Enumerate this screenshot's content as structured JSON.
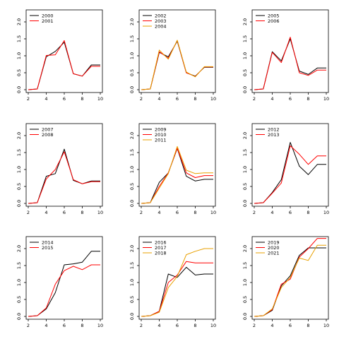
{
  "chart_data": [
    {
      "type": "line",
      "x": [
        2,
        3,
        4,
        5,
        6,
        7,
        8,
        9,
        10
      ],
      "xticks": [
        2,
        4,
        6,
        8,
        10
      ],
      "yticks": [
        "0.0",
        "0.5",
        "1.0",
        "1.5",
        "2.0"
      ],
      "xlim": [
        2,
        10
      ],
      "ylim": [
        0,
        2.3
      ],
      "grid": false,
      "legend": "top-left",
      "series": [
        {
          "name": "2000",
          "color": "#000000",
          "values": [
            0,
            0.02,
            0.97,
            1.13,
            1.4,
            0.47,
            0.4,
            0.73,
            0.73
          ]
        },
        {
          "name": "2001",
          "color": "#ff0000",
          "values": [
            0,
            0.02,
            1.01,
            1.03,
            1.45,
            0.47,
            0.4,
            0.69,
            0.69
          ]
        }
      ]
    },
    {
      "type": "line",
      "x": [
        2,
        3,
        4,
        5,
        6,
        7,
        8,
        9,
        10
      ],
      "xticks": [
        2,
        4,
        6,
        8,
        10
      ],
      "yticks": [
        "0.0",
        "0.5",
        "1.0",
        "1.5",
        "2.0"
      ],
      "xlim": [
        2,
        10
      ],
      "ylim": [
        0,
        2.3
      ],
      "grid": false,
      "legend": "top-left",
      "series": [
        {
          "name": "2002",
          "color": "#000000",
          "values": [
            0,
            0.02,
            1.1,
            0.97,
            1.43,
            0.5,
            0.4,
            0.66,
            0.66
          ]
        },
        {
          "name": "2003",
          "color": "#ff0000",
          "values": [
            0,
            0.02,
            1.12,
            0.93,
            1.45,
            0.5,
            0.39,
            0.67,
            0.67
          ]
        },
        {
          "name": "2004",
          "color": "#e8a000",
          "values": [
            0,
            0.02,
            1.17,
            0.9,
            1.46,
            0.52,
            0.38,
            0.68,
            0.68
          ]
        }
      ]
    },
    {
      "type": "line",
      "x": [
        2,
        3,
        4,
        5,
        6,
        7,
        8,
        9,
        10
      ],
      "xticks": [
        2,
        4,
        6,
        8,
        10
      ],
      "yticks": [
        "0.0",
        "0.5",
        "1.0",
        "1.5",
        "2.0"
      ],
      "xlim": [
        2,
        10
      ],
      "ylim": [
        0,
        2.3
      ],
      "grid": false,
      "legend": "top-left",
      "series": [
        {
          "name": "2005",
          "color": "#000000",
          "values": [
            0,
            0.02,
            1.12,
            0.85,
            1.5,
            0.55,
            0.45,
            0.64,
            0.64
          ]
        },
        {
          "name": "2006",
          "color": "#ff0000",
          "values": [
            0,
            0.02,
            1.1,
            0.8,
            1.55,
            0.5,
            0.42,
            0.58,
            0.58
          ]
        }
      ]
    },
    {
      "type": "line",
      "x": [
        2,
        3,
        4,
        5,
        6,
        7,
        8,
        9,
        10
      ],
      "xticks": [
        2,
        4,
        6,
        8,
        10
      ],
      "yticks": [
        "0.0",
        "0.5",
        "1.0",
        "1.5",
        "2.0"
      ],
      "xlim": [
        2,
        10
      ],
      "ylim": [
        0,
        2.3
      ],
      "grid": false,
      "legend": "top-left",
      "series": [
        {
          "name": "2007",
          "color": "#000000",
          "values": [
            0,
            0.02,
            0.8,
            0.88,
            1.6,
            0.68,
            0.58,
            0.66,
            0.66
          ]
        },
        {
          "name": "2008",
          "color": "#ff0000",
          "values": [
            0,
            0.02,
            0.72,
            1.0,
            1.52,
            0.7,
            0.58,
            0.64,
            0.64
          ]
        }
      ]
    },
    {
      "type": "line",
      "x": [
        2,
        3,
        4,
        5,
        6,
        7,
        8,
        9,
        10
      ],
      "xticks": [
        2,
        4,
        6,
        8,
        10
      ],
      "yticks": [
        "0.0",
        "0.5",
        "1.0",
        "1.5",
        "2.0"
      ],
      "xlim": [
        2,
        10
      ],
      "ylim": [
        0,
        2.3
      ],
      "grid": false,
      "legend": "top-left",
      "series": [
        {
          "name": "2009",
          "color": "#000000",
          "values": [
            0,
            0.02,
            0.62,
            0.9,
            1.62,
            0.8,
            0.66,
            0.71,
            0.71
          ]
        },
        {
          "name": "2010",
          "color": "#ff0000",
          "values": [
            0,
            0.02,
            0.5,
            0.9,
            1.63,
            0.9,
            0.76,
            0.82,
            0.82
          ]
        },
        {
          "name": "2011",
          "color": "#e8a000",
          "values": [
            0,
            0.02,
            0.45,
            0.88,
            1.68,
            0.98,
            0.88,
            0.9,
            0.9
          ]
        }
      ]
    },
    {
      "type": "line",
      "x": [
        2,
        3,
        4,
        5,
        6,
        7,
        8,
        9,
        10
      ],
      "xticks": [
        2,
        4,
        6,
        8,
        10
      ],
      "yticks": [
        "0.0",
        "0.5",
        "1.0",
        "1.5",
        "2.0"
      ],
      "xlim": [
        2,
        10
      ],
      "ylim": [
        0,
        2.3
      ],
      "grid": false,
      "legend": "top-left",
      "series": [
        {
          "name": "2012",
          "color": "#000000",
          "values": [
            0,
            0.02,
            0.32,
            0.7,
            1.8,
            1.1,
            0.85,
            1.15,
            1.15
          ]
        },
        {
          "name": "2013",
          "color": "#ff0000",
          "values": [
            0,
            0.02,
            0.3,
            0.6,
            1.7,
            1.45,
            1.15,
            1.4,
            1.4
          ]
        }
      ]
    },
    {
      "type": "line",
      "x": [
        2,
        3,
        4,
        5,
        6,
        7,
        8,
        9,
        10
      ],
      "xticks": [
        2,
        4,
        6,
        8,
        10
      ],
      "yticks": [
        "0.0",
        "0.5",
        "1.0",
        "1.5",
        "2.0"
      ],
      "xlim": [
        2,
        10
      ],
      "ylim": [
        0,
        2.3
      ],
      "grid": false,
      "legend": "top-left",
      "series": [
        {
          "name": "2014",
          "color": "#000000",
          "values": [
            0,
            0.02,
            0.22,
            0.7,
            1.52,
            1.55,
            1.6,
            1.92,
            1.92
          ]
        },
        {
          "name": "2015",
          "color": "#ff0000",
          "values": [
            0,
            0.02,
            0.25,
            0.95,
            1.35,
            1.48,
            1.38,
            1.52,
            1.52
          ]
        }
      ]
    },
    {
      "type": "line",
      "x": [
        2,
        3,
        4,
        5,
        6,
        7,
        8,
        9,
        10
      ],
      "xticks": [
        2,
        4,
        6,
        8,
        10
      ],
      "yticks": [
        "0.0",
        "0.5",
        "1.0",
        "1.5",
        "2.0"
      ],
      "xlim": [
        2,
        10
      ],
      "ylim": [
        0,
        2.3
      ],
      "grid": false,
      "legend": "top-left",
      "series": [
        {
          "name": "2016",
          "color": "#000000",
          "values": [
            0,
            0.02,
            0.15,
            1.25,
            1.15,
            1.45,
            1.22,
            1.25,
            1.25
          ]
        },
        {
          "name": "2017",
          "color": "#ff0000",
          "values": [
            0,
            0.02,
            0.15,
            1.0,
            1.22,
            1.62,
            1.58,
            1.58,
            1.58
          ]
        },
        {
          "name": "2018",
          "color": "#e8a000",
          "values": [
            0,
            0.02,
            0.12,
            0.85,
            1.18,
            1.82,
            1.92,
            2.0,
            2.0
          ]
        }
      ]
    },
    {
      "type": "line",
      "x": [
        2,
        3,
        4,
        5,
        6,
        7,
        8,
        9,
        10
      ],
      "xticks": [
        2,
        4,
        6,
        8,
        10
      ],
      "yticks": [
        "0.0",
        "0.5",
        "1.0",
        "1.5",
        "2.0"
      ],
      "xlim": [
        2,
        10
      ],
      "ylim": [
        0,
        2.3
      ],
      "grid": false,
      "legend": "top-left",
      "series": [
        {
          "name": "2019",
          "color": "#000000",
          "values": [
            0,
            0.02,
            0.18,
            0.9,
            1.2,
            1.8,
            2.02,
            2.02,
            2.02
          ]
        },
        {
          "name": "2020",
          "color": "#ff0000",
          "values": [
            0,
            0.02,
            0.2,
            0.95,
            1.1,
            1.75,
            2.0,
            2.3,
            2.3
          ]
        },
        {
          "name": "2021",
          "color": "#e8a000",
          "values": [
            0,
            0.02,
            0.22,
            0.85,
            1.15,
            1.72,
            1.65,
            2.1,
            2.1
          ]
        }
      ]
    }
  ]
}
